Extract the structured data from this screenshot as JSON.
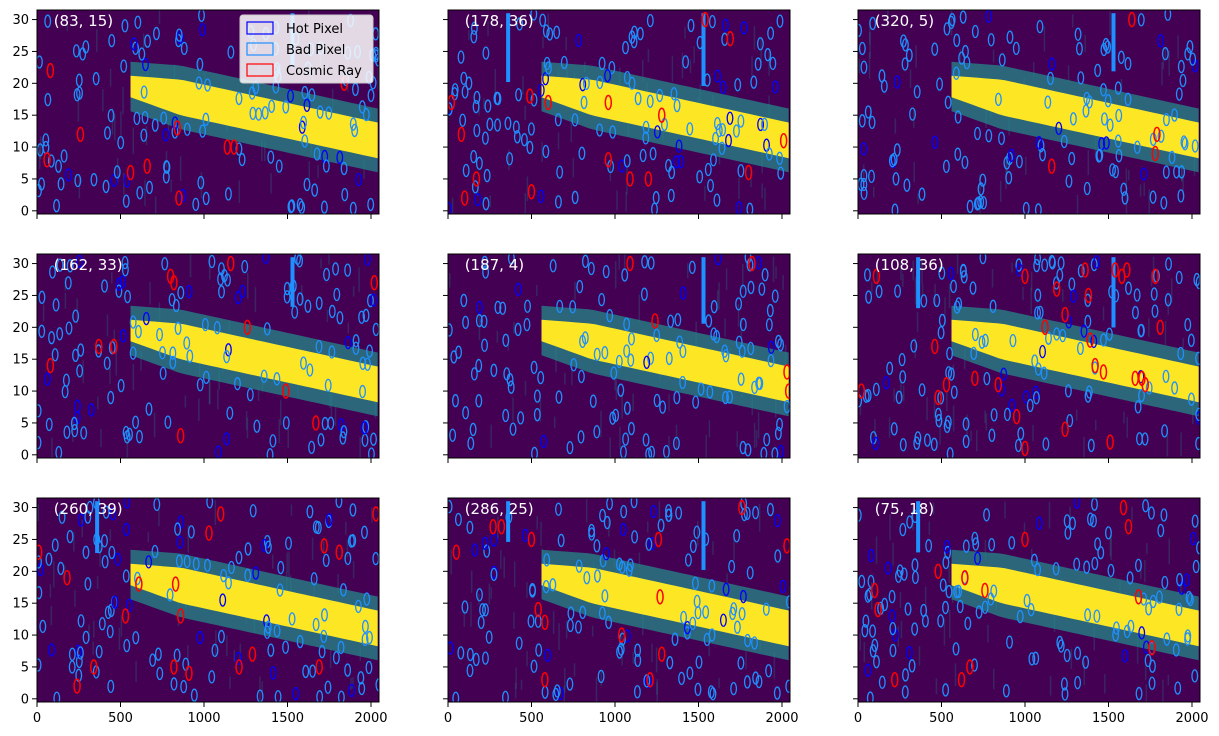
{
  "figure": {
    "legend": {
      "placement": "upper-right of first panel",
      "items": [
        {
          "label": "Hot Pixel",
          "color": "#0000ff"
        },
        {
          "label": "Bad Pixel",
          "color": "#1e90ff"
        },
        {
          "label": "Cosmic Ray",
          "color": "#ff0000"
        }
      ]
    }
  },
  "chart_data": {
    "type": "heatmap",
    "layout": {
      "rows": 3,
      "cols": 3,
      "sharex": true,
      "sharey": true
    },
    "xlim": [
      0,
      2048
    ],
    "ylim": [
      0,
      31
    ],
    "xticks": [
      0,
      500,
      1000,
      1500,
      2000
    ],
    "yticks": [
      0,
      5,
      10,
      15,
      20,
      25,
      30
    ],
    "colormap": "viridis",
    "colors": {
      "background": "#440154",
      "mid": "#21918c",
      "trace": "#fde725",
      "hot": "#0000ff",
      "bad": "#1e90ff",
      "cosmic": "#ff0000"
    },
    "trace": {
      "x_start": 560,
      "center_start": 19.5,
      "center_end": 11,
      "half_width": 2.8
    },
    "panels": [
      {
        "label": "(83, 15)",
        "cosmic": [
          [
            80,
            22
          ],
          [
            60,
            8
          ],
          [
            260,
            12
          ],
          [
            560,
            6
          ],
          [
            660,
            7
          ],
          [
            840,
            13
          ],
          [
            1140,
            10
          ],
          [
            1180,
            10
          ],
          [
            850,
            2
          ],
          [
            1840,
            20
          ]
        ]
      },
      {
        "label": "(178, 36)",
        "cosmic": [
          [
            20,
            17
          ],
          [
            80,
            12
          ],
          [
            100,
            2
          ],
          [
            170,
            5
          ],
          [
            500,
            3
          ],
          [
            490,
            18
          ],
          [
            600,
            17
          ],
          [
            960,
            17
          ],
          [
            1090,
            5
          ],
          [
            1280,
            15
          ],
          [
            1540,
            30
          ],
          [
            1690,
            27
          ],
          [
            1800,
            6
          ],
          [
            2010,
            11
          ],
          [
            1200,
            5
          ],
          [
            960,
            8
          ]
        ]
      },
      {
        "label": "(320, 5)",
        "cosmic": [
          [
            1160,
            7
          ],
          [
            1640,
            30
          ],
          [
            1780,
            9
          ],
          [
            1790,
            12
          ]
        ]
      },
      {
        "label": "(162, 33)",
        "cosmic": [
          [
            80,
            14
          ],
          [
            370,
            17
          ],
          [
            460,
            17
          ],
          [
            800,
            28
          ],
          [
            820,
            27
          ],
          [
            860,
            3
          ],
          [
            1160,
            30
          ],
          [
            2020,
            27
          ],
          [
            1260,
            20
          ],
          [
            1490,
            10
          ],
          [
            1670,
            5
          ]
        ]
      },
      {
        "label": "(187, 4)",
        "cosmic": [
          [
            1090,
            30
          ],
          [
            1240,
            21
          ],
          [
            1820,
            30
          ],
          [
            2030,
            13
          ],
          [
            2040,
            10
          ]
        ]
      },
      {
        "label": "(108, 36)",
        "cosmic": [
          [
            20,
            10
          ],
          [
            110,
            28
          ],
          [
            460,
            17
          ],
          [
            480,
            9
          ],
          [
            530,
            11
          ],
          [
            700,
            12
          ],
          [
            840,
            11
          ],
          [
            950,
            6
          ],
          [
            1000,
            28
          ],
          [
            1120,
            20
          ],
          [
            1190,
            26
          ],
          [
            1240,
            22
          ],
          [
            1360,
            29
          ],
          [
            1380,
            25
          ],
          [
            1390,
            18
          ],
          [
            1420,
            14
          ],
          [
            1470,
            13
          ],
          [
            1510,
            2
          ],
          [
            1540,
            29
          ],
          [
            1580,
            28
          ],
          [
            1610,
            29
          ],
          [
            1660,
            12
          ],
          [
            1700,
            12
          ],
          [
            1720,
            11
          ],
          [
            1780,
            28
          ],
          [
            1810,
            20
          ],
          [
            1000,
            1
          ],
          [
            1240,
            4
          ]
        ]
      },
      {
        "label": "(260, 39)",
        "cosmic": [
          [
            10,
            23
          ],
          [
            180,
            19
          ],
          [
            240,
            2
          ],
          [
            340,
            5
          ],
          [
            530,
            13
          ],
          [
            610,
            18
          ],
          [
            820,
            5
          ],
          [
            830,
            18
          ],
          [
            860,
            13
          ],
          [
            910,
            4
          ],
          [
            1030,
            26
          ],
          [
            1100,
            29
          ],
          [
            1210,
            5
          ],
          [
            1290,
            7
          ],
          [
            1690,
            5
          ],
          [
            1720,
            24
          ],
          [
            1810,
            23
          ],
          [
            2030,
            29
          ]
        ]
      },
      {
        "label": "(286, 25)",
        "cosmic": [
          [
            50,
            23
          ],
          [
            270,
            27
          ],
          [
            320,
            27
          ],
          [
            500,
            25
          ],
          [
            540,
            14
          ],
          [
            580,
            12
          ],
          [
            1260,
            25
          ],
          [
            1270,
            16
          ],
          [
            1280,
            7
          ],
          [
            1210,
            3
          ],
          [
            1040,
            10
          ],
          [
            1760,
            30
          ],
          [
            2030,
            24
          ],
          [
            580,
            3
          ]
        ]
      },
      {
        "label": "(75, 18)",
        "cosmic": [
          [
            100,
            17
          ],
          [
            120,
            14
          ],
          [
            220,
            3
          ],
          [
            480,
            20
          ],
          [
            640,
            19
          ],
          [
            760,
            17
          ],
          [
            1000,
            25
          ],
          [
            1620,
            27
          ],
          [
            1680,
            16
          ],
          [
            1760,
            8
          ],
          [
            1590,
            30
          ],
          [
            620,
            3
          ],
          [
            670,
            5
          ]
        ]
      }
    ]
  }
}
